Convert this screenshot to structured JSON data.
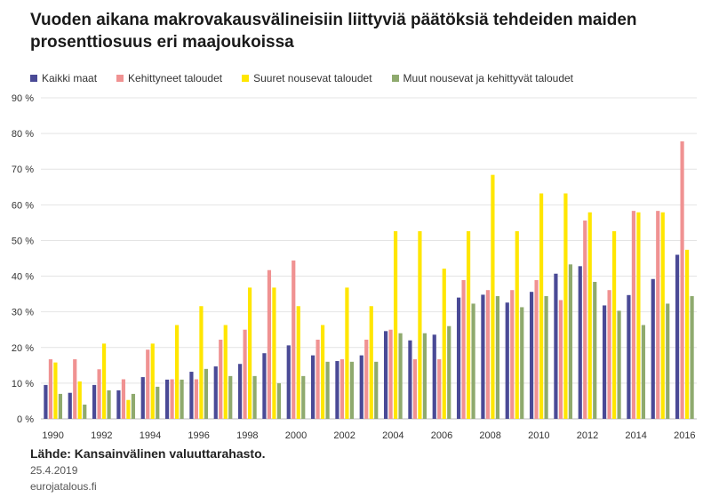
{
  "chart_data": {
    "type": "bar",
    "title": "Vuoden aikana makrovakausvälineisiin liittyviä päätöksiä tehdeiden maiden prosenttiosuus eri maajoukoissa",
    "xlabel": "",
    "ylabel": "",
    "ylim": [
      0,
      90
    ],
    "yticks": [
      "0 %",
      "10 %",
      "20 %",
      "30 %",
      "40 %",
      "50 %",
      "60 %",
      "70 %",
      "80 %",
      "90 %"
    ],
    "grid": true,
    "legend_position": "top",
    "categories": [
      "1990",
      "1991",
      "1992",
      "1993",
      "1994",
      "1995",
      "1996",
      "1997",
      "1998",
      "1999",
      "2000",
      "2001",
      "2002",
      "2003",
      "2004",
      "2005",
      "2006",
      "2007",
      "2008",
      "2009",
      "2010",
      "2011",
      "2012",
      "2013",
      "2014",
      "2015",
      "2016"
    ],
    "x_tick_labels": [
      "1990",
      "",
      "1992",
      "",
      "1994",
      "",
      "1996",
      "",
      "1998",
      "",
      "2000",
      "",
      "2002",
      "",
      "2004",
      "",
      "2006",
      "",
      "2008",
      "",
      "2010",
      "",
      "2012",
      "",
      "2014",
      "",
      "2016"
    ],
    "series": [
      {
        "name": "Kaikki maat",
        "color": "#4a4a96",
        "values": [
          9.5,
          7.3,
          9.5,
          8.0,
          11.7,
          11.0,
          13.2,
          14.7,
          15.4,
          18.4,
          20.6,
          17.8,
          16.2,
          17.8,
          24.6,
          22.0,
          23.6,
          34.0,
          34.8,
          32.6,
          35.6,
          40.7,
          42.8,
          31.8,
          34.7,
          39.2,
          46.0
        ]
      },
      {
        "name": "Kehittyneet taloudet",
        "color": "#f09292",
        "values": [
          16.7,
          16.7,
          13.9,
          11.1,
          19.4,
          11.1,
          11.1,
          22.2,
          25.0,
          41.7,
          44.4,
          22.2,
          16.7,
          22.2,
          25.0,
          16.7,
          16.7,
          38.9,
          36.1,
          36.1,
          38.9,
          33.3,
          55.6,
          36.1,
          58.3,
          58.3,
          77.8
        ]
      },
      {
        "name": "Suuret nousevat taloudet",
        "color": "#ffe600",
        "values": [
          15.8,
          10.5,
          21.1,
          5.3,
          21.1,
          26.3,
          31.6,
          26.3,
          36.8,
          36.8,
          31.6,
          26.3,
          36.8,
          31.6,
          52.6,
          52.6,
          42.1,
          52.6,
          68.4,
          52.6,
          63.2,
          63.2,
          57.9,
          52.6,
          57.9,
          57.9,
          47.4
        ]
      },
      {
        "name": "Muut nousevat ja kehittyvät taloudet",
        "color": "#8faa6e",
        "values": [
          7.0,
          4.0,
          8.0,
          7.0,
          9.0,
          11.0,
          14.0,
          12.0,
          12.0,
          10.0,
          12.0,
          16.0,
          16.0,
          16.0,
          24.0,
          24.0,
          26.0,
          32.3,
          34.4,
          31.3,
          34.4,
          43.3,
          38.4,
          30.3,
          26.3,
          32.3,
          34.4
        ]
      }
    ]
  },
  "footer": {
    "source": "Lähde: Kansainvälinen valuuttarahasto.",
    "date": "25.4.2019",
    "site": "eurojatalous.fi"
  }
}
